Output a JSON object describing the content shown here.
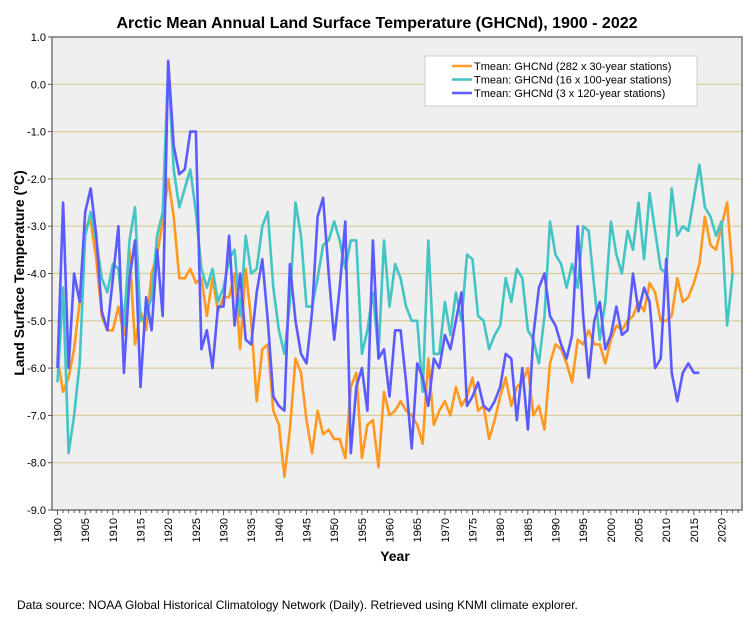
{
  "chart_data": {
    "type": "line",
    "title": "Arctic Mean Annual Land Surface Temperature (GHCNd), 1900 - 2022",
    "xlabel": "Year",
    "ylabel": "Land Surface Temperature (°C)",
    "ylim": [
      -9.0,
      1.0
    ],
    "xlim": [
      1899,
      2023.7
    ],
    "yticks": [
      "1.0",
      "0.0",
      "-1.0",
      "-2.0",
      "-3.0",
      "-4.0",
      "-5.0",
      "-6.0",
      "-7.0",
      "-8.0",
      "-9.0"
    ],
    "xticks": [
      "1900",
      "1905",
      "1910",
      "1915",
      "1920",
      "1925",
      "1930",
      "1935",
      "1940",
      "1945",
      "1950",
      "1955",
      "1960",
      "1965",
      "1970",
      "1975",
      "1980",
      "1985",
      "1990",
      "1995",
      "2000",
      "2005",
      "2010",
      "2015",
      "2020"
    ],
    "grid": true,
    "legend_position": "top-right",
    "series": [
      {
        "name": "Tmean: GHCNd (282 x 30-year stations)",
        "color": "#ff9922",
        "start": 1900,
        "values": [
          -5.8,
          -6.5,
          -6.2,
          -5.6,
          -4.6,
          -3.0,
          -2.9,
          -3.7,
          -4.9,
          -5.2,
          -5.2,
          -4.7,
          -5.3,
          -3.5,
          -5.5,
          -4.8,
          -5.2,
          -4.0,
          -3.6,
          -2.9,
          -2.0,
          -2.8,
          -4.1,
          -4.1,
          -3.9,
          -4.2,
          -4.1,
          -4.9,
          -4.1,
          -4.8,
          -4.5,
          -4.5,
          -4.0,
          -5.6,
          -3.9,
          -5.0,
          -6.7,
          -5.6,
          -5.5,
          -6.9,
          -7.2,
          -8.3,
          -7.3,
          -5.8,
          -6.1,
          -7.1,
          -7.8,
          -6.9,
          -7.4,
          -7.3,
          -7.5,
          -7.5,
          -7.9,
          -6.4,
          -6.1,
          -7.9,
          -7.2,
          -7.1,
          -8.1,
          -6.5,
          -7.0,
          -6.9,
          -6.7,
          -6.9,
          -7.0,
          -7.2,
          -7.6,
          -5.8,
          -7.2,
          -6.9,
          -6.7,
          -7.0,
          -6.4,
          -6.8,
          -6.6,
          -6.2,
          -6.9,
          -6.8,
          -7.5,
          -7.1,
          -6.6,
          -6.2,
          -6.8,
          -6.4,
          -6.3,
          -6.0,
          -7.0,
          -6.8,
          -7.3,
          -5.9,
          -5.5,
          -5.6,
          -5.9,
          -6.3,
          -5.4,
          -5.5,
          -5.2,
          -5.5,
          -5.5,
          -5.9,
          -5.4,
          -5.1,
          -5.2,
          -5.0,
          -4.9,
          -4.6,
          -4.8,
          -4.2,
          -4.4,
          -5.0,
          -5.0,
          -4.9,
          -4.1,
          -4.6,
          -4.5,
          -4.2,
          -3.8,
          -2.8,
          -3.4,
          -3.5,
          -3.0,
          -2.5,
          -4.0
        ]
      },
      {
        "name": "Tmean: GHCNd (16 x 100-year stations)",
        "color": "#44c4c4",
        "start": 1900,
        "values": [
          -6.3,
          -4.3,
          -7.8,
          -7.0,
          -5.9,
          -3.2,
          -2.7,
          -3.3,
          -4.1,
          -4.4,
          -3.8,
          -3.9,
          -5.1,
          -3.3,
          -2.6,
          -5.0,
          -4.9,
          -4.5,
          -3.2,
          -2.7,
          0.4,
          -1.8,
          -2.6,
          -2.2,
          -1.8,
          -2.7,
          -3.9,
          -4.3,
          -3.9,
          -4.6,
          -4.3,
          -3.7,
          -3.5,
          -4.9,
          -3.2,
          -4.0,
          -3.9,
          -3.0,
          -2.7,
          -4.3,
          -5.2,
          -5.7,
          -4.6,
          -2.5,
          -3.2,
          -4.7,
          -4.7,
          -4.1,
          -3.4,
          -3.3,
          -2.9,
          -3.3,
          -3.9,
          -3.3,
          -3.3,
          -5.7,
          -5.2,
          -4.4,
          -5.7,
          -3.3,
          -4.7,
          -3.8,
          -4.1,
          -4.7,
          -5.0,
          -5.0,
          -6.5,
          -3.3,
          -5.7,
          -5.7,
          -4.6,
          -5.3,
          -4.4,
          -5.0,
          -3.6,
          -3.7,
          -4.9,
          -5.0,
          -5.6,
          -5.3,
          -5.1,
          -4.1,
          -4.6,
          -3.9,
          -4.1,
          -5.2,
          -5.4,
          -5.9,
          -4.9,
          -2.9,
          -3.6,
          -3.8,
          -4.3,
          -3.8,
          -4.3,
          -3.0,
          -3.1,
          -4.3,
          -5.4,
          -4.6,
          -2.9,
          -3.6,
          -4.0,
          -3.1,
          -3.5,
          -2.5,
          -3.7,
          -2.3,
          -3.1,
          -3.9,
          -4.0,
          -2.2,
          -3.2,
          -3.0,
          -3.1,
          -2.4,
          -1.7,
          -2.6,
          -2.8,
          -3.2,
          -2.9,
          -5.1,
          -4.0
        ]
      },
      {
        "name": "Tmean: GHCNd (3 x 120-year stations)",
        "color": "#5b5bff",
        "start": 1900,
        "values": [
          -6.0,
          -2.5,
          -6.0,
          -4.0,
          -4.6,
          -2.7,
          -2.2,
          -3.2,
          -4.8,
          -5.2,
          -4.1,
          -3.0,
          -6.1,
          -4.1,
          -3.3,
          -6.4,
          -4.5,
          -5.2,
          -3.5,
          -4.9,
          0.5,
          -1.3,
          -1.9,
          -1.8,
          -1.0,
          -1.0,
          -5.6,
          -5.2,
          -6.0,
          -4.7,
          -4.7,
          -3.2,
          -5.1,
          -4.0,
          -5.4,
          -5.5,
          -4.4,
          -3.7,
          -5.0,
          -6.6,
          -6.8,
          -6.9,
          -3.8,
          -5.0,
          -5.7,
          -5.9,
          -4.8,
          -2.8,
          -2.4,
          -4.0,
          -5.4,
          -4.3,
          -2.9,
          -7.8,
          -6.4,
          -6.0,
          -6.9,
          -3.3,
          -5.8,
          -5.6,
          -6.6,
          -5.2,
          -5.2,
          -6.3,
          -7.7,
          -5.9,
          -6.2,
          -6.8,
          -5.8,
          -6.0,
          -5.3,
          -5.6,
          -5.0,
          -4.4,
          -6.8,
          -6.6,
          -6.3,
          -6.8,
          -6.9,
          -6.7,
          -6.4,
          -5.7,
          -5.8,
          -7.1,
          -6.0,
          -7.3,
          -5.3,
          -4.3,
          -4.0,
          -4.9,
          -5.1,
          -5.5,
          -5.8,
          -5.3,
          -3.0,
          -4.9,
          -6.2,
          -5.0,
          -4.6,
          -5.6,
          -5.3,
          -4.7,
          -5.3,
          -5.2,
          -4.0,
          -4.8,
          -4.3,
          -4.6,
          -6.0,
          -5.8,
          -3.7,
          -6.1,
          -6.7,
          -6.1,
          -5.9,
          -6.1,
          -6.1
        ]
      }
    ]
  },
  "footer": {
    "source": "Data source: NOAA Global Historical Climatology Network (Daily). Retrieved using KNMI climate explorer."
  }
}
